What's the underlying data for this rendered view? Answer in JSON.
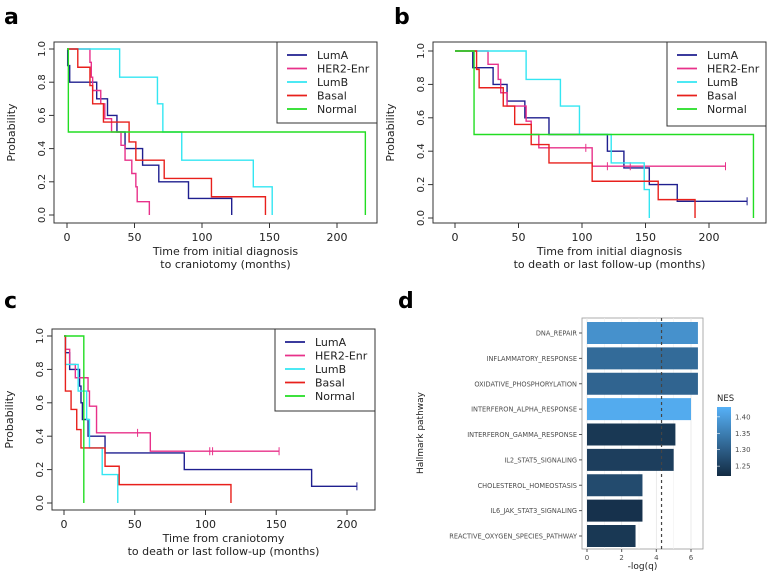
{
  "panel_labels": [
    "a",
    "b",
    "c",
    "d"
  ],
  "colors": {
    "LumA": "#1f1f8f",
    "HER2-Enr": "#e8318a",
    "LumB": "#33e6f2",
    "Basal": "#e8201c",
    "Normal": "#22dd22"
  },
  "chart_data": [
    {
      "type": "line",
      "subtype": "kaplan-meier-step",
      "panel": "a",
      "xlabel": [
        "Time from initial diagnosis",
        "to craniotomy (months)"
      ],
      "ylabel": "Probability",
      "xlim": [
        -5,
        228
      ],
      "ylim": [
        0,
        1
      ],
      "xticks": [
        0,
        50,
        100,
        150,
        200
      ],
      "yticks": [
        "0.0",
        "0.2",
        "0.4",
        "0.6",
        "0.8",
        "1.0"
      ],
      "legend": "top-right",
      "series": [
        {
          "name": "LumA",
          "steps": [
            [
              0,
              1
            ],
            [
              0.5,
              0.9
            ],
            [
              2,
              0.8
            ],
            [
              22,
              0.7
            ],
            [
              30,
              0.6
            ],
            [
              37,
              0.5
            ],
            [
              43,
              0.4
            ],
            [
              56,
              0.3
            ],
            [
              68,
              0.2
            ],
            [
              90,
              0.1
            ],
            [
              122,
              0
            ]
          ],
          "end": 122,
          "censored": []
        },
        {
          "name": "HER2-Enr",
          "steps": [
            [
              0,
              1
            ],
            [
              17,
              0.92
            ],
            [
              18,
              0.83
            ],
            [
              19,
              0.75
            ],
            [
              25,
              0.67
            ],
            [
              28,
              0.58
            ],
            [
              33,
              0.5
            ],
            [
              40,
              0.42
            ],
            [
              43,
              0.33
            ],
            [
              48,
              0.25
            ],
            [
              51,
              0.17
            ],
            [
              52,
              0.08
            ],
            [
              61,
              0
            ]
          ],
          "end": 61,
          "censored": []
        },
        {
          "name": "LumB",
          "steps": [
            [
              0,
              1
            ],
            [
              39,
              0.83
            ],
            [
              67,
              0.67
            ],
            [
              71,
              0.5
            ],
            [
              85,
              0.33
            ],
            [
              138,
              0.17
            ],
            [
              152,
              0
            ]
          ],
          "end": 152,
          "censored": []
        },
        {
          "name": "Basal",
          "steps": [
            [
              0,
              1
            ],
            [
              8,
              0.89
            ],
            [
              17,
              0.78
            ],
            [
              19,
              0.67
            ],
            [
              27,
              0.56
            ],
            [
              46,
              0.44
            ],
            [
              51,
              0.33
            ],
            [
              72,
              0.22
            ],
            [
              107,
              0.11
            ],
            [
              147,
              0
            ]
          ],
          "end": 147,
          "censored": []
        },
        {
          "name": "Normal",
          "steps": [
            [
              0,
              1
            ],
            [
              1,
              0.5
            ],
            [
              221,
              0
            ]
          ],
          "end": 221,
          "censored": []
        }
      ]
    },
    {
      "type": "line",
      "subtype": "kaplan-meier-step",
      "panel": "b",
      "xlabel": [
        "Time from initial diagnosis",
        "to death or last follow-up (months)"
      ],
      "ylabel": "Probability",
      "xlim": [
        -5,
        245
      ],
      "ylim": [
        0,
        1
      ],
      "xticks": [
        0,
        50,
        100,
        150,
        200
      ],
      "yticks": [
        "0.0",
        "0.2",
        "0.4",
        "0.6",
        "0.8",
        "1.0"
      ],
      "legend": "top-right",
      "series": [
        {
          "name": "LumA",
          "steps": [
            [
              0,
              1
            ],
            [
              14,
              0.9
            ],
            [
              30,
              0.8
            ],
            [
              41,
              0.7
            ],
            [
              55,
              0.6
            ],
            [
              74,
              0.5
            ],
            [
              120,
              0.4
            ],
            [
              133,
              0.3
            ],
            [
              153,
              0.2
            ],
            [
              175,
              0.1
            ]
          ],
          "end": 230,
          "censored": [
            230
          ]
        },
        {
          "name": "HER2-Enr",
          "steps": [
            [
              0,
              1
            ],
            [
              26,
              0.92
            ],
            [
              34,
              0.83
            ],
            [
              36,
              0.75
            ],
            [
              41,
              0.67
            ],
            [
              56,
              0.58
            ],
            [
              60,
              0.5
            ],
            [
              66,
              0.42
            ],
            [
              108,
              0.31
            ]
          ],
          "end": 213,
          "censored": [
            103,
            120,
            138,
            213
          ]
        },
        {
          "name": "LumB",
          "steps": [
            [
              0,
              1
            ],
            [
              56,
              0.83
            ],
            [
              83,
              0.67
            ],
            [
              98,
              0.5
            ],
            [
              123,
              0.33
            ],
            [
              149,
              0.17
            ],
            [
              153,
              0
            ]
          ],
          "end": 153,
          "censored": []
        },
        {
          "name": "Basal",
          "steps": [
            [
              0,
              1
            ],
            [
              17,
              0.89
            ],
            [
              19,
              0.78
            ],
            [
              38,
              0.67
            ],
            [
              47,
              0.56
            ],
            [
              60,
              0.44
            ],
            [
              74,
              0.33
            ],
            [
              108,
              0.22
            ],
            [
              160,
              0.11
            ],
            [
              189,
              0
            ]
          ],
          "end": 189,
          "censored": []
        },
        {
          "name": "Normal",
          "steps": [
            [
              0,
              1
            ],
            [
              15,
              0.5
            ],
            [
              235,
              0
            ]
          ],
          "end": 235,
          "censored": []
        }
      ]
    },
    {
      "type": "line",
      "subtype": "kaplan-meier-step",
      "panel": "c",
      "xlabel": [
        "Time from craniotomy",
        "to death or last follow-up (months)"
      ],
      "ylabel": "Probability",
      "xlim": [
        -8,
        217
      ],
      "ylim": [
        0,
        1
      ],
      "xticks": [
        0,
        50,
        100,
        150,
        200
      ],
      "yticks": [
        "0.0",
        "0.2",
        "0.4",
        "0.6",
        "0.8",
        "1.0"
      ],
      "legend": "top-right",
      "series": [
        {
          "name": "LumA",
          "steps": [
            [
              0,
              1
            ],
            [
              1,
              0.9
            ],
            [
              4,
              0.8
            ],
            [
              11,
              0.7
            ],
            [
              12,
              0.6
            ],
            [
              13,
              0.5
            ],
            [
              17,
              0.4
            ],
            [
              29,
              0.3
            ],
            [
              85,
              0.2
            ],
            [
              175,
              0.1
            ]
          ],
          "end": 207,
          "censored": [
            207
          ]
        },
        {
          "name": "HER2-Enr",
          "steps": [
            [
              0,
              1
            ],
            [
              1,
              0.92
            ],
            [
              4,
              0.83
            ],
            [
              8,
              0.75
            ],
            [
              17,
              0.67
            ],
            [
              18,
              0.58
            ],
            [
              23,
              0.42
            ],
            [
              61,
              0.31
            ]
          ],
          "end": 152,
          "censored": [
            52,
            103,
            105,
            152
          ]
        },
        {
          "name": "LumB",
          "steps": [
            [
              0,
              1
            ],
            [
              1,
              0.83
            ],
            [
              10,
              0.67
            ],
            [
              16,
              0.5
            ],
            [
              18,
              0.33
            ],
            [
              27,
              0.17
            ],
            [
              38,
              0
            ]
          ],
          "end": 38,
          "censored": []
        },
        {
          "name": "Basal",
          "steps": [
            [
              0,
              1
            ],
            [
              1,
              0.67
            ],
            [
              5,
              0.56
            ],
            [
              9,
              0.44
            ],
            [
              12,
              0.33
            ],
            [
              29,
              0.22
            ],
            [
              39,
              0.11
            ],
            [
              118,
              0
            ]
          ],
          "end": 118,
          "censored": []
        },
        {
          "name": "Normal",
          "steps": [
            [
              0,
              1
            ],
            [
              14,
              0
            ]
          ],
          "end": 14,
          "censored": []
        }
      ]
    },
    {
      "type": "bar",
      "orientation": "horizontal",
      "panel": "d",
      "xlabel": "-log(q)",
      "ylabel": "Hallmark pathway",
      "xlim": [
        -0.3,
        6.8
      ],
      "xticks": [
        0,
        2,
        4,
        6
      ],
      "threshold_line": 4.3,
      "grid": true,
      "categories": [
        "DNA_REPAIR",
        "INFLAMMATORY_RESPONSE",
        "OXIDATIVE_PHOSPHORYLATION",
        "INTERFERON_ALPHA_RESPONSE",
        "INTERFERON_GAMMA_RESPONSE",
        "IL2_STAT5_SIGNALING",
        "CHOLESTEROL_HOMEOSTASIS",
        "IL6_JAK_STAT3_SIGNALING",
        "REACTIVE_OXYGEN_SPECIES_PATHWAY"
      ],
      "values": [
        6.4,
        6.4,
        6.4,
        6.0,
        5.1,
        5.0,
        3.2,
        3.2,
        2.8
      ],
      "nes": [
        1.38,
        1.32,
        1.31,
        1.42,
        1.24,
        1.25,
        1.27,
        1.23,
        1.24
      ],
      "colorbar": {
        "title": "NES",
        "ticks": [
          "1.25",
          "1.30",
          "1.35",
          "1.40"
        ],
        "range": [
          1.22,
          1.43
        ],
        "low_color": "#132b43",
        "high_color": "#56b1f7"
      }
    }
  ]
}
